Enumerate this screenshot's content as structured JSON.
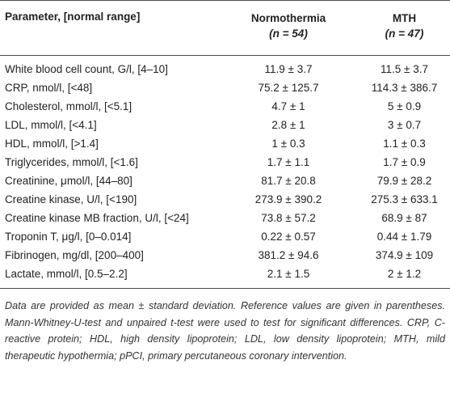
{
  "table": {
    "header": {
      "parameter": "Parameter, [normal range]",
      "normothermia": {
        "label": "Normothermia",
        "n": "(n = 54)"
      },
      "mth": {
        "label": "MTH",
        "n": "(n = 47)"
      }
    },
    "rows": [
      {
        "parameter": "White blood cell count, G/l, [4–10]",
        "normothermia": "11.9 ± 3.7",
        "mth": "11.5 ± 3.7"
      },
      {
        "parameter": "CRP, nmol/l, [<48]",
        "normothermia": "75.2 ± 125.7",
        "mth": "114.3 ± 386.7"
      },
      {
        "parameter": "Cholesterol, mmol/l, [<5.1]",
        "normothermia": "4.7 ± 1",
        "mth": "5 ± 0.9"
      },
      {
        "parameter": "LDL, mmol/l, [<4.1]",
        "normothermia": "2.8 ± 1",
        "mth": "3 ± 0.7"
      },
      {
        "parameter": "HDL, mmol/l, [>1.4]",
        "normothermia": "1 ± 0.3",
        "mth": "1.1 ± 0.3"
      },
      {
        "parameter": "Triglycerides, mmol/l, [<1.6]",
        "normothermia": "1.7 ± 1.1",
        "mth": "1.7 ± 0.9"
      },
      {
        "parameter": "Creatinine, μmol/l, [44–80]",
        "normothermia": "81.7 ± 20.8",
        "mth": "79.9 ± 28.2"
      },
      {
        "parameter": "Creatine kinase, U/l, [<190]",
        "normothermia": "273.9 ± 390.2",
        "mth": "275.3 ± 633.1"
      },
      {
        "parameter": "Creatine kinase MB fraction, U/l, [<24]",
        "normothermia": "73.8 ± 57.2",
        "mth": "68.9 ± 87"
      },
      {
        "parameter": "Troponin T, μg/l, [0–0.014]",
        "normothermia": "0.22 ± 0.57",
        "mth": "0.44 ± 1.79"
      },
      {
        "parameter": "Fibrinogen, mg/dl, [200–400]",
        "normothermia": "381.2 ± 94.6",
        "mth": "374.9 ± 109"
      },
      {
        "parameter": "Lactate, mmol/l, [0.5–2.2]",
        "normothermia": "2.1 ± 1.5",
        "mth": "2 ± 1.2"
      }
    ],
    "footnote": "Data are provided as mean ± standard deviation. Reference values are given in parentheses. Mann-Whitney-U-test and unpaired t-test were used to test for significant differences. CRP, C-reactive protein; HDL, high density lipoprotein; LDL, low density lipoprotein; MTH, mild therapeutic hypothermia; pPCI, primary percutaneous coronary intervention."
  }
}
